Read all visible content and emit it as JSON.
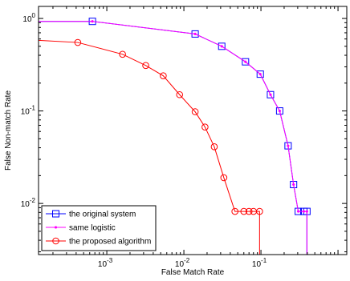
{
  "chart_data": {
    "type": "line",
    "title": "",
    "xlabel": "False Match Rate",
    "ylabel": "False Non-match Rate",
    "xscale": "log",
    "yscale": "log",
    "xlim": [
      0.00013,
      1.3
    ],
    "ylim": [
      0.0028,
      1.35
    ],
    "grid": false,
    "legend_position": "bottom-left",
    "x_ticks": [
      {
        "value": 0.001,
        "base": "10",
        "exp": "-3"
      },
      {
        "value": 0.01,
        "base": "10",
        "exp": "-2"
      },
      {
        "value": 0.1,
        "base": "10",
        "exp": "-1"
      }
    ],
    "y_ticks": [
      {
        "value": 1,
        "base": "10",
        "exp": "0"
      },
      {
        "value": 0.1,
        "base": "10",
        "exp": "-1"
      },
      {
        "value": 0.01,
        "base": "10",
        "exp": "-2"
      }
    ],
    "series": [
      {
        "name": "the original system",
        "color": "#0000ff",
        "marker": "square",
        "x": [
          0.00013,
          0.00065,
          0.014,
          0.031,
          0.063,
          0.098,
          0.133,
          0.175,
          0.225,
          0.265,
          0.305,
          0.36,
          0.395,
          0.395
        ],
        "y": [
          0.93,
          0.93,
          0.68,
          0.5,
          0.34,
          0.25,
          0.15,
          0.1,
          0.042,
          0.016,
          0.0082,
          0.0082,
          0.0082,
          0.0028
        ],
        "marker_idx": [
          1,
          2,
          3,
          4,
          5,
          6,
          7,
          8,
          9,
          10,
          11,
          12
        ]
      },
      {
        "name": "same logistic",
        "color": "#ff00ff",
        "marker": "dot",
        "x": [
          0.00013,
          0.00065,
          0.014,
          0.031,
          0.063,
          0.098,
          0.133,
          0.175,
          0.225,
          0.265,
          0.305,
          0.36,
          0.395,
          0.395
        ],
        "y": [
          0.93,
          0.93,
          0.68,
          0.5,
          0.34,
          0.25,
          0.15,
          0.1,
          0.042,
          0.016,
          0.0082,
          0.0082,
          0.0082,
          0.0028
        ],
        "marker_idx": [
          1,
          2,
          3,
          4,
          5,
          6,
          7,
          8,
          9,
          10,
          11,
          12
        ]
      },
      {
        "name": "the proposed algorithm",
        "color": "#ff0000",
        "marker": "circle",
        "x": [
          0.00013,
          0.00042,
          0.0016,
          0.0032,
          0.0054,
          0.0088,
          0.014,
          0.0188,
          0.0248,
          0.033,
          0.046,
          0.06,
          0.07,
          0.08,
          0.096,
          0.096
        ],
        "y": [
          0.58,
          0.55,
          0.41,
          0.31,
          0.24,
          0.15,
          0.098,
          0.067,
          0.041,
          0.019,
          0.0082,
          0.0082,
          0.0082,
          0.0082,
          0.0082,
          0.0028
        ],
        "marker_idx": [
          1,
          2,
          3,
          4,
          5,
          6,
          7,
          8,
          9,
          10,
          11,
          12,
          13,
          14
        ]
      }
    ]
  }
}
